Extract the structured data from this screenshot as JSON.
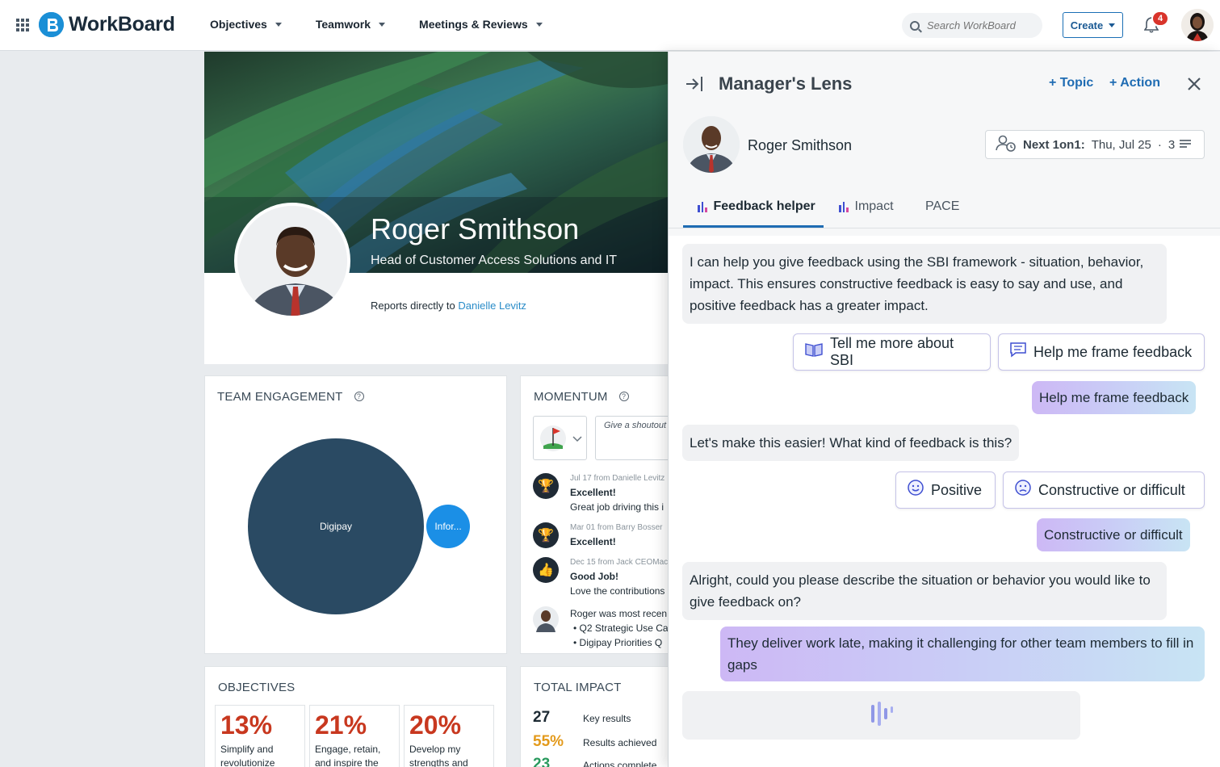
{
  "app": {
    "logo_text": "WorkBoard"
  },
  "nav": {
    "items": [
      {
        "label": "Objectives"
      },
      {
        "label": "Teamwork"
      },
      {
        "label": "Meetings & Reviews"
      }
    ],
    "search_placeholder": "Search WorkBoard",
    "create_label": "Create",
    "notification_count": "4"
  },
  "profile": {
    "name": "Roger Smithson",
    "title": "Head of Customer Access Solutions and IT",
    "reports_prefix": "Reports directly to",
    "manager": "Danielle Levitz"
  },
  "engagement": {
    "title": "TEAM ENGAGEMENT",
    "bubbles": [
      "Digipay",
      "Infor..."
    ]
  },
  "momentum": {
    "title": "MOMENTUM",
    "shoutout_placeholder": "Give a shoutout",
    "items": [
      {
        "meta": "Jul 17 from Danielle Levitz",
        "headline": "Excellent!",
        "text": "Great job driving this i"
      },
      {
        "meta": "Mar 01 from Barry Bosser",
        "headline": "Excellent!"
      },
      {
        "meta": "Dec 15 from Jack CEOMac",
        "headline": "Good Job!",
        "text": "Love the contributions"
      },
      {
        "text": "Roger was most recen",
        "bullets": [
          "Q2 Strategic Use Ca",
          "Digipay Priorities Q"
        ]
      }
    ]
  },
  "objectives": {
    "title": "OBJECTIVES",
    "items": [
      {
        "pct": "13%",
        "desc": "Simplify and revolutionize"
      },
      {
        "pct": "21%",
        "desc": "Engage, retain, and inspire the"
      },
      {
        "pct": "20%",
        "desc": "Develop my strengths and"
      }
    ]
  },
  "impact": {
    "title": "TOTAL IMPACT",
    "rows": [
      {
        "num": "27",
        "label": "Key results",
        "color": "#1d2a33"
      },
      {
        "num": "55%",
        "label": "Results achieved",
        "color": "#e39a1b"
      },
      {
        "num": "23",
        "label": "Actions complete",
        "color": "#2a9a5e"
      }
    ]
  },
  "lens": {
    "title": "Manager's Lens",
    "add_topic": "+ Topic",
    "add_action": "+ Action",
    "person": "Roger Smithson",
    "next_label": "Next 1on1:",
    "next_date": "Thu, Jul 25",
    "next_sep": "·",
    "next_count": "3",
    "tabs": [
      {
        "label": "Feedback helper"
      },
      {
        "label": "Impact"
      },
      {
        "label": "PACE"
      }
    ],
    "chat": {
      "bot1": "I can help you give feedback using the SBI framework - situation, behavior, impact. This ensures constructive feedback is easy to say and use, and positive feedback has a greater impact.",
      "opt_sbi": "Tell me more about SBI",
      "opt_frame": "Help me frame feedback",
      "user1": "Help me frame feedback",
      "bot2": "Let's make this easier! What kind of feedback is this?",
      "opt_positive": "Positive",
      "opt_constructive": "Constructive or difficult",
      "user2": "Constructive or difficult",
      "bot3": "Alright, could you please describe the situation or behavior you would like to give feedback on?",
      "user3": "They deliver work late, making it challenging for other team members to fill in gaps"
    }
  }
}
